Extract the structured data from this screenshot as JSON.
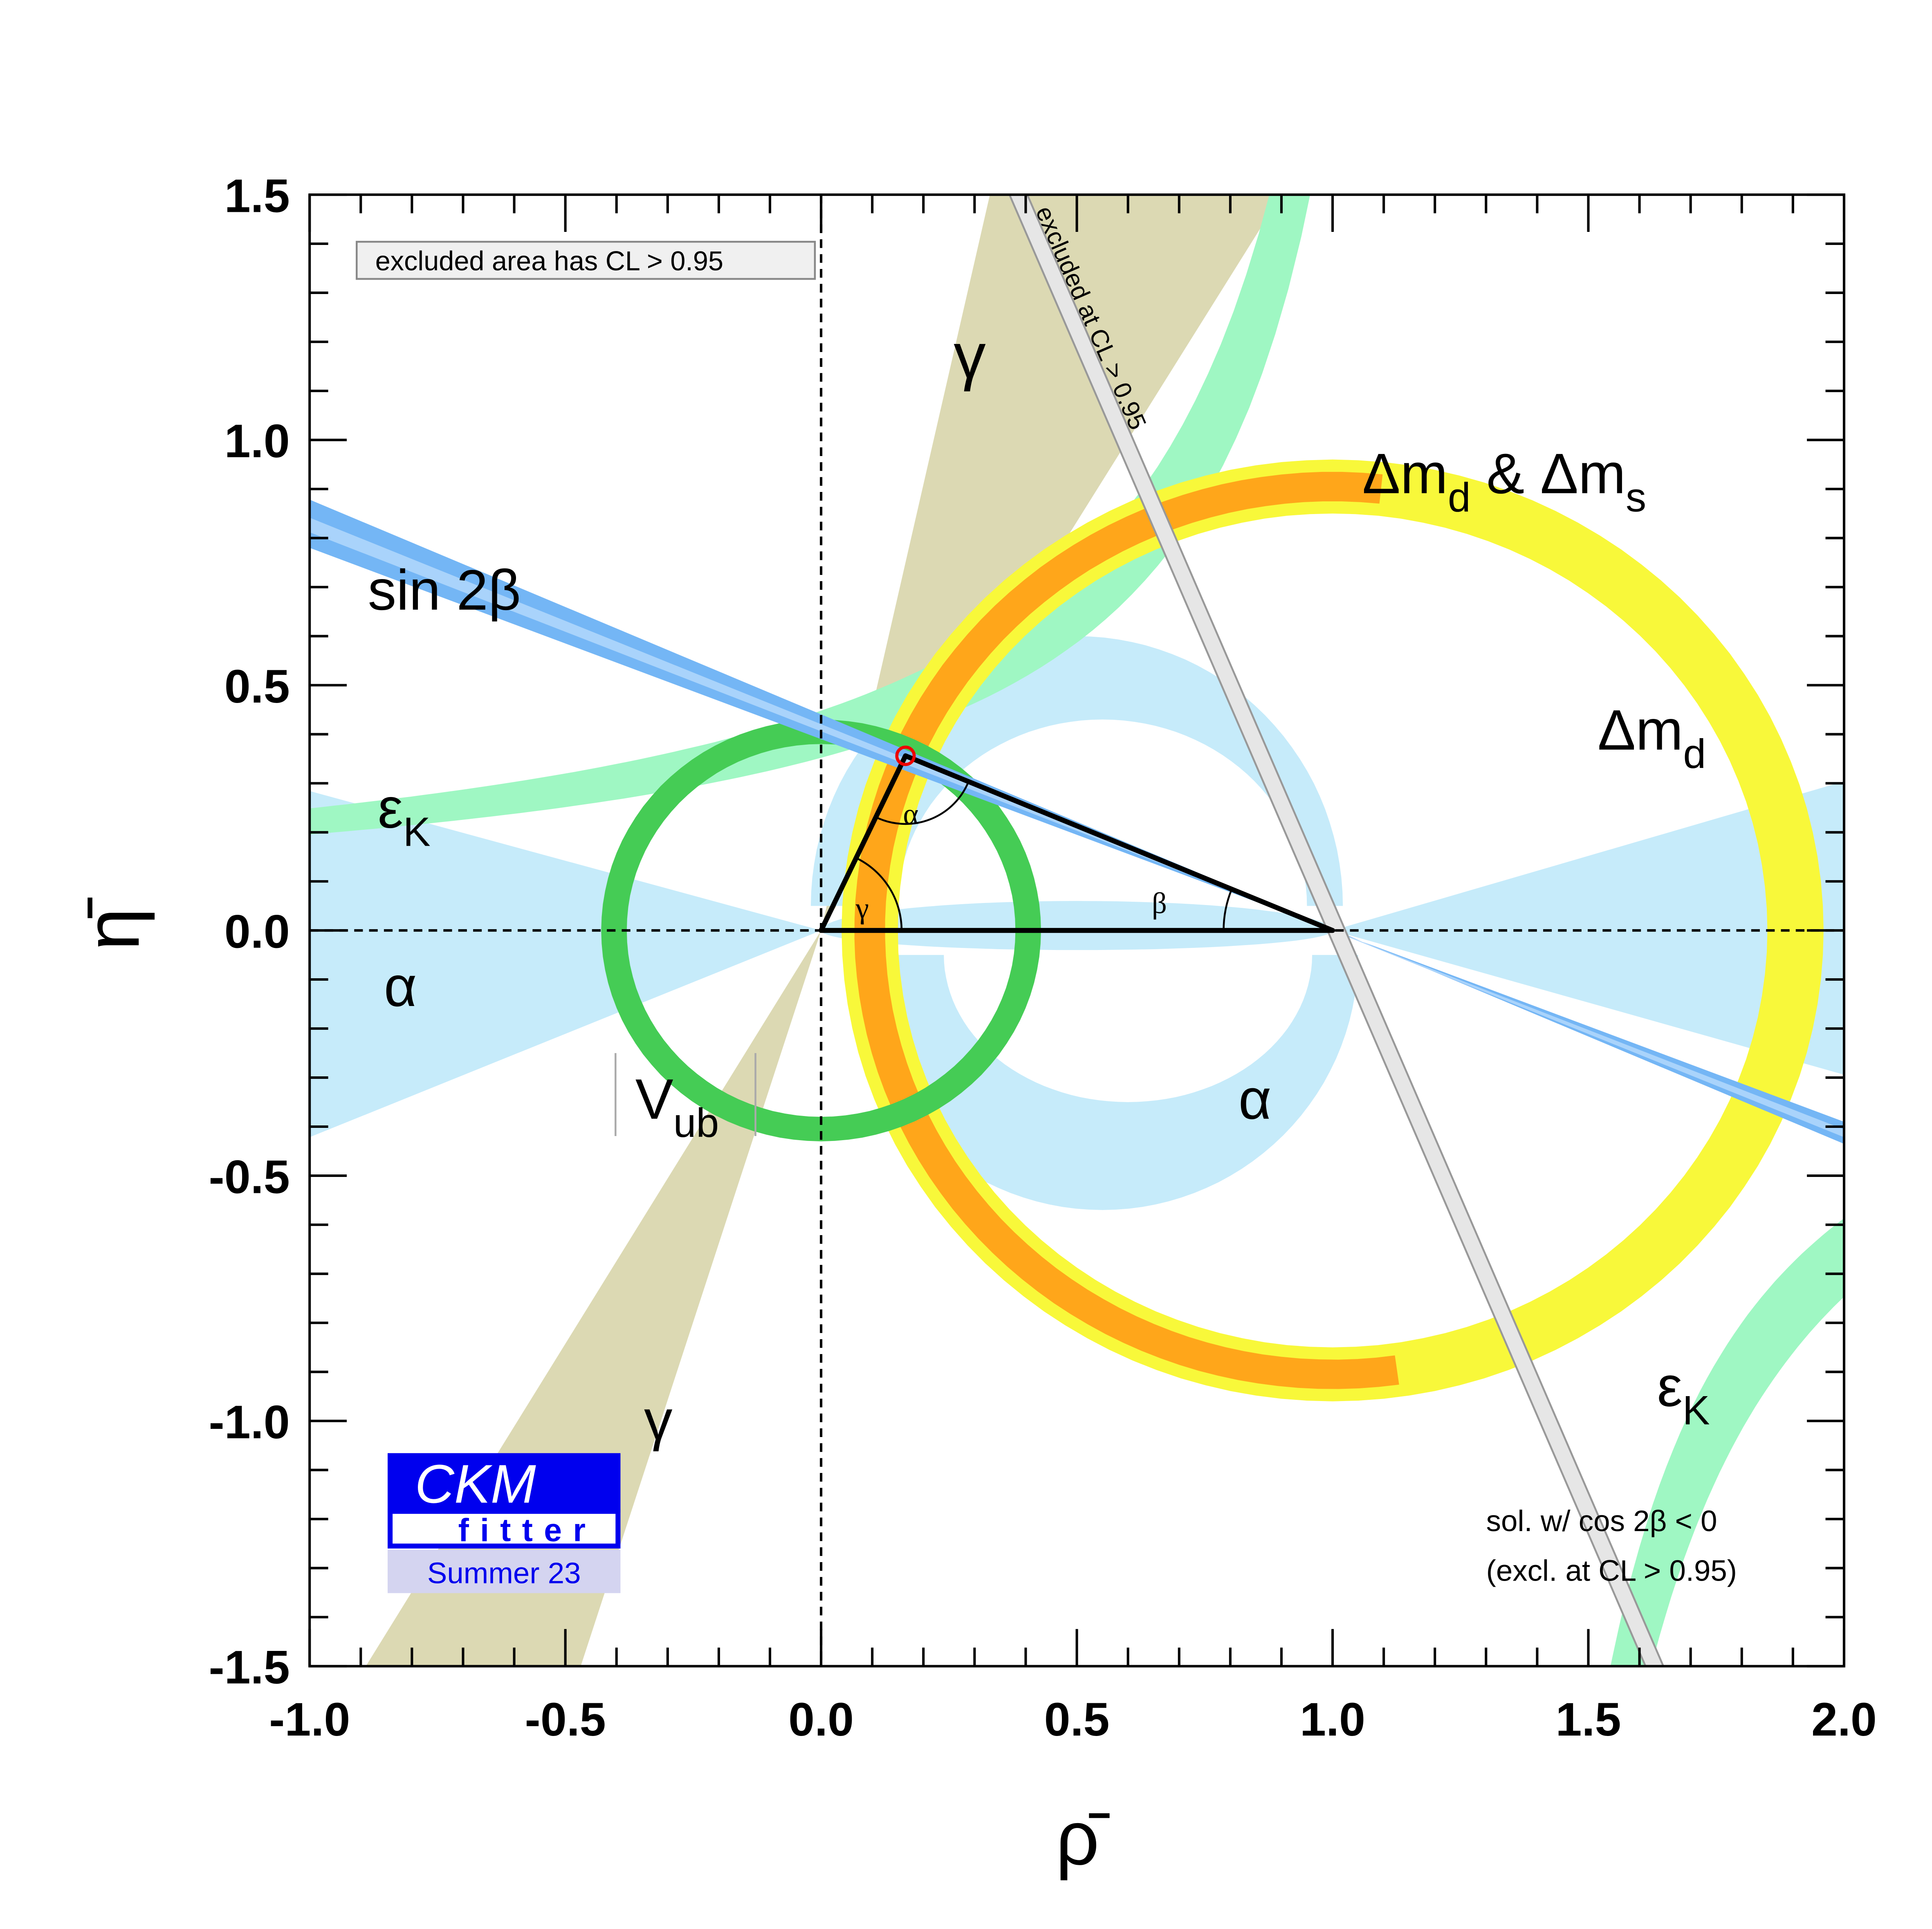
{
  "chart_data": {
    "type": "ckm",
    "x_label": "ρ̄",
    "y_label": "η̄",
    "xlim": [
      -1,
      2
    ],
    "ylim": [
      -1.5,
      1.5
    ],
    "xticks": [
      {
        "value": -1,
        "label": "-1.0"
      },
      -0.5,
      {
        "value": 0,
        "label": "0.0"
      },
      0.5,
      {
        "value": 1,
        "label": "1.0"
      },
      1.5,
      {
        "value": 2,
        "label": "2.0"
      }
    ],
    "yticks": [
      -1.5,
      {
        "value": -1,
        "label": "-1.0"
      },
      -0.5,
      {
        "value": 0,
        "label": "0.0"
      },
      0.5,
      {
        "value": 1,
        "label": "1.0"
      },
      1.5
    ],
    "minor_divisions": 5,
    "legend": "excluded area has CL > 0.95",
    "excluded_label": "excluded at CL > 0.95",
    "note": [
      "sol. w/ cos 2β < 0",
      "(excl. at CL > 0.95)"
    ],
    "logo": {
      "title": "CKM",
      "subtitle": "fitter",
      "edition": "Summer 23"
    },
    "triangle": {
      "rho": [
        0,
        1,
        0.165
      ],
      "eta": [
        0,
        0,
        0.356
      ],
      "angles": [
        "α",
        "β",
        "γ"
      ]
    },
    "labels": [
      [
        {
          "text": "γ"
        }
      ],
      [
        {
          "text": "Δm",
          "sub": "d"
        },
        {
          "text": " & Δm",
          "sub": "s"
        }
      ],
      [
        {
          "text": "sin 2β"
        }
      ],
      [
        {
          "text": "Δm",
          "sub": "d"
        }
      ],
      [
        {
          "text": "ε",
          "sub": "K"
        }
      ],
      [
        {
          "text": "α"
        }
      ],
      [
        {
          "text": "V",
          "sub": "ub"
        }
      ],
      [
        {
          "text": "α"
        }
      ],
      [
        {
          "text": "γ"
        }
      ],
      [
        {
          "text": "ε",
          "sub": "K"
        }
      ]
    ]
  }
}
